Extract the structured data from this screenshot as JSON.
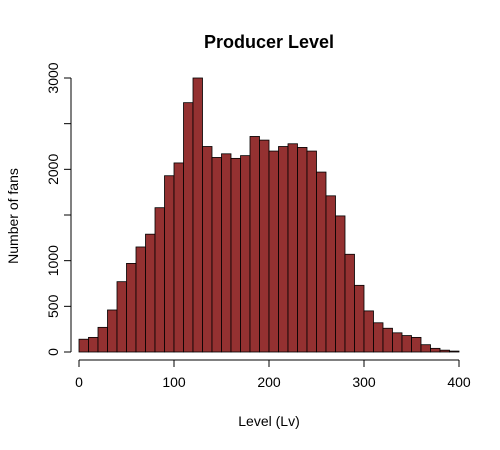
{
  "chart_data": {
    "type": "bar",
    "title": "Producer Level",
    "xlabel": "Level (Lv)",
    "ylabel": "Number of fans",
    "bar_color": "#943131",
    "bin_width": 10,
    "x_bin_starts": [
      0,
      10,
      20,
      30,
      40,
      50,
      60,
      70,
      80,
      90,
      100,
      110,
      120,
      130,
      140,
      150,
      160,
      170,
      180,
      190,
      200,
      210,
      220,
      230,
      240,
      250,
      260,
      270,
      280,
      290,
      300,
      310,
      320,
      330,
      340,
      350,
      360,
      370,
      380,
      390
    ],
    "values": [
      140,
      160,
      270,
      460,
      770,
      970,
      1150,
      1290,
      1580,
      1930,
      2070,
      2730,
      3000,
      2250,
      2130,
      2170,
      2120,
      2150,
      2360,
      2320,
      2200,
      2250,
      2280,
      2240,
      2200,
      1970,
      1710,
      1490,
      1070,
      730,
      450,
      320,
      260,
      210,
      180,
      160,
      80,
      40,
      20,
      10
    ],
    "xlim": [
      0,
      400
    ],
    "ylim": [
      0,
      3000
    ],
    "x_ticks": [
      "0",
      "100",
      "200",
      "300",
      "400"
    ],
    "y_ticks": [
      "0",
      "500",
      "1000",
      "2000",
      "3000"
    ]
  }
}
